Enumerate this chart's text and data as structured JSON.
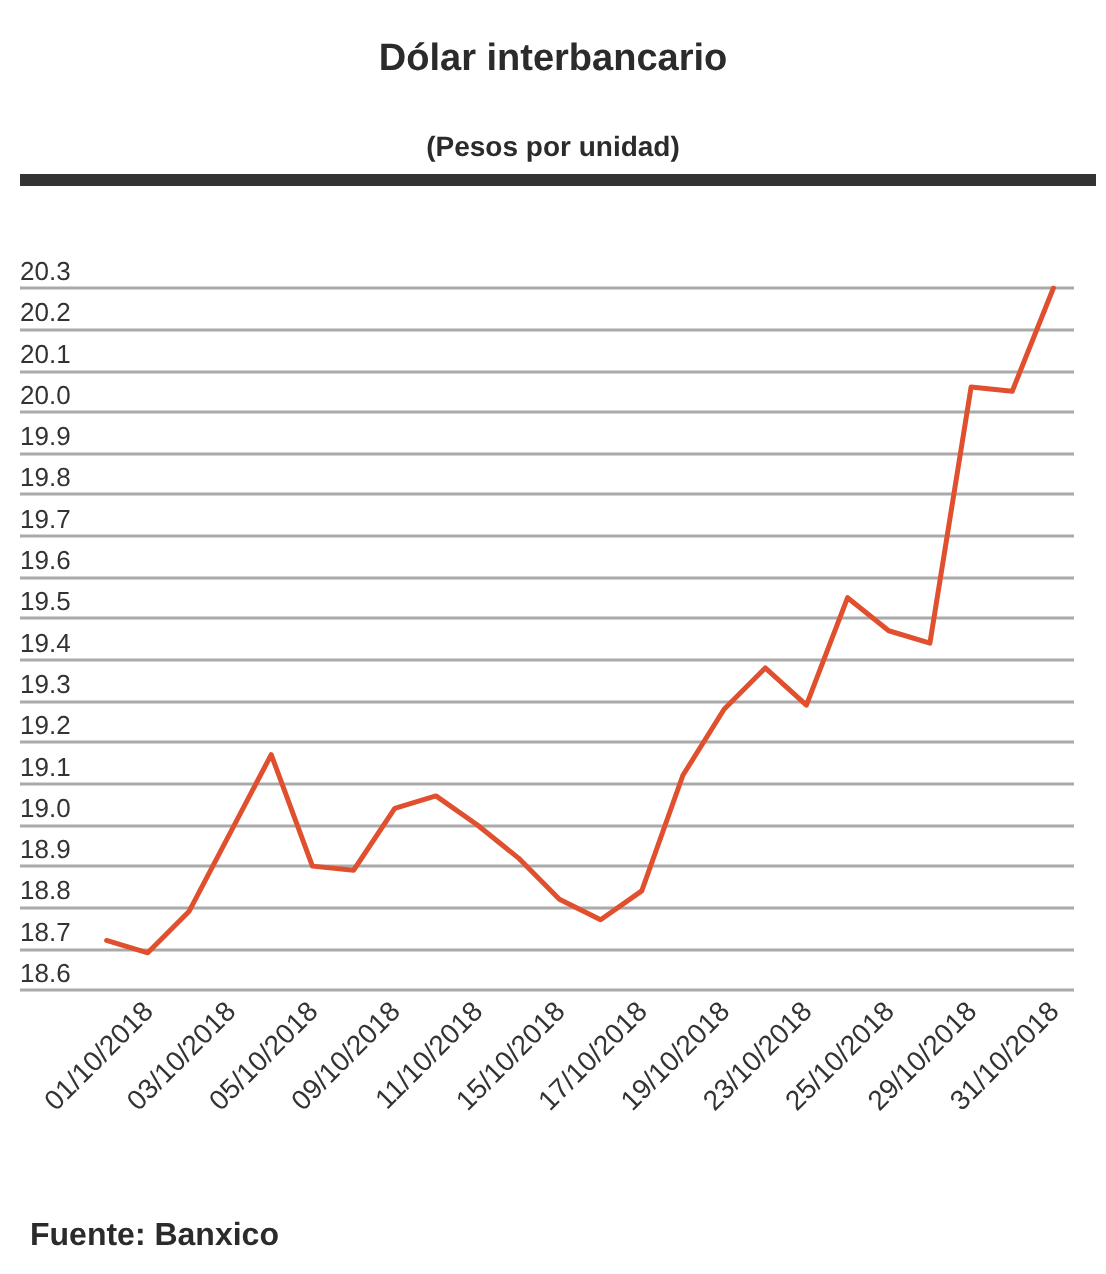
{
  "chart_data": {
    "type": "line",
    "title": "Dólar interbancario",
    "subtitle": "(Pesos por unidad)",
    "annotations": [
      "Fuente: Banxico"
    ],
    "categories": [
      null,
      "01/10/2018",
      null,
      "03/10/2018",
      null,
      "05/10/2018",
      null,
      "09/10/2018",
      null,
      "11/10/2018",
      null,
      "15/10/2018",
      null,
      "17/10/2018",
      null,
      "19/10/2018",
      null,
      "23/10/2018",
      null,
      "25/10/2018",
      null,
      "29/10/2018",
      null,
      "31/10/2018"
    ],
    "series": [
      {
        "color": "#e0502e",
        "values": [
          18.72,
          18.69,
          18.79,
          18.98,
          19.17,
          18.9,
          18.89,
          19.04,
          19.07,
          19.0,
          18.92,
          18.82,
          18.77,
          18.84,
          19.12,
          19.28,
          19.38,
          19.29,
          19.55,
          19.47,
          19.44,
          20.06,
          20.05,
          20.3
        ]
      }
    ],
    "ylim": [
      18.6,
      20.3
    ],
    "yticks": [
      18.6,
      18.7,
      18.8,
      18.9,
      {
        "value": 19,
        "label": "19.0"
      },
      19.1,
      19.2,
      19.3,
      19.4,
      19.5,
      19.6,
      19.7,
      19.8,
      19.9,
      {
        "value": 20,
        "label": "20.0"
      },
      20.1,
      20.2,
      20.3
    ],
    "grid": "y",
    "marker": "none",
    "line_style": "solid"
  }
}
